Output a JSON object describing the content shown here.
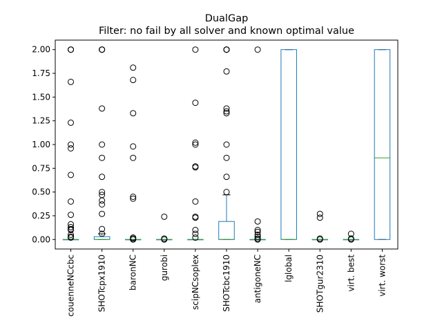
{
  "chart_data": {
    "type": "box",
    "title": "DualGap",
    "subtitle": "Filter: no fail by all solver and known optimal value",
    "xlabel": "",
    "ylabel": "",
    "ylim": [
      -0.1,
      2.1
    ],
    "yticks": [
      "0.00",
      "0.25",
      "0.50",
      "0.75",
      "1.00",
      "1.25",
      "1.50",
      "1.75",
      "2.00"
    ],
    "grid": false,
    "categories": [
      "couenneNCcbc",
      "SHOTcpx1910",
      "baronNC",
      "gurobi",
      "scipNCsoplex",
      "SHOTcbc1910",
      "antigoneNC",
      "lglobal",
      "SHOTgur2310",
      "virt. best",
      "virt. worst"
    ],
    "box_color": "#1f77b4",
    "median_color": "#2ca02c",
    "series": [
      {
        "q1": 0.0,
        "median": 0.0,
        "q3": 0.0,
        "whisker_low": 0.0,
        "whisker_high": 0.0,
        "outliers": [
          2.0,
          2.0,
          2.0,
          1.66,
          1.23,
          1.0,
          0.96,
          0.68,
          0.4,
          0.26,
          0.16,
          0.13,
          0.11,
          0.1,
          0.05,
          0.03,
          0.02
        ]
      },
      {
        "q1": 0.0,
        "median": 0.0,
        "q3": 0.03,
        "whisker_low": 0.0,
        "whisker_high": 0.06,
        "outliers": [
          2.0,
          2.0,
          2.0,
          2.0,
          1.38,
          1.0,
          0.86,
          0.66,
          0.5,
          0.47,
          0.41,
          0.37,
          0.27,
          0.11,
          0.06
        ]
      },
      {
        "q1": 0.0,
        "median": 0.0,
        "q3": 0.0,
        "whisker_low": 0.0,
        "whisker_high": 0.0,
        "outliers": [
          1.81,
          1.68,
          1.33,
          0.98,
          0.86,
          0.45,
          0.43,
          0.02,
          0.01,
          0.0
        ]
      },
      {
        "q1": 0.0,
        "median": 0.0,
        "q3": 0.0,
        "whisker_low": 0.0,
        "whisker_high": 0.0,
        "outliers": [
          0.24,
          0.01,
          0.0
        ]
      },
      {
        "q1": 0.0,
        "median": 0.0,
        "q3": 0.0,
        "whisker_low": 0.0,
        "whisker_high": 0.0,
        "outliers": [
          2.0,
          1.44,
          1.02,
          1.0,
          0.77,
          0.76,
          0.4,
          0.24,
          0.23,
          0.1,
          0.06,
          0.02
        ]
      },
      {
        "q1": 0.0,
        "median": 0.0,
        "q3": 0.19,
        "whisker_low": 0.0,
        "whisker_high": 0.47,
        "outliers": [
          2.0,
          2.0,
          2.0,
          2.0,
          1.77,
          1.38,
          1.35,
          1.33,
          1.0,
          0.86,
          0.66,
          0.5
        ]
      },
      {
        "q1": 0.0,
        "median": 0.0,
        "q3": 0.0,
        "whisker_low": 0.0,
        "whisker_high": 0.0,
        "outliers": [
          2.0,
          0.19,
          0.1,
          0.08,
          0.05,
          0.03,
          0.01,
          0.0
        ]
      },
      {
        "q1": 0.0,
        "median": 0.0,
        "q3": 2.0,
        "whisker_low": 0.0,
        "whisker_high": 2.0,
        "outliers": []
      },
      {
        "q1": 0.0,
        "median": 0.0,
        "q3": 0.0,
        "whisker_low": 0.0,
        "whisker_high": 0.0,
        "outliers": [
          0.27,
          0.23,
          0.01,
          0.0
        ]
      },
      {
        "q1": 0.0,
        "median": 0.0,
        "q3": 0.0,
        "whisker_low": 0.0,
        "whisker_high": 0.0,
        "outliers": [
          0.06,
          0.01,
          0.0
        ]
      },
      {
        "q1": 0.0,
        "median": 0.86,
        "q3": 2.0,
        "whisker_low": 0.0,
        "whisker_high": 2.0,
        "outliers": []
      }
    ]
  }
}
